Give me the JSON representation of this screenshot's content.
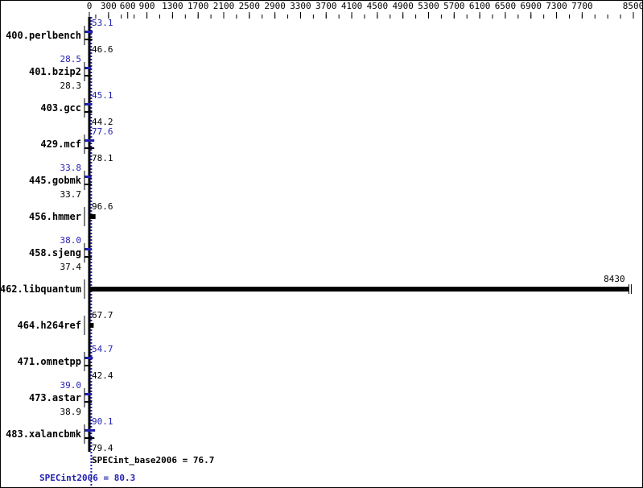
{
  "chart_data": {
    "type": "bar",
    "orientation": "horizontal",
    "xlim": [
      0,
      8500
    ],
    "x_ticks": [
      0,
      300,
      600,
      900,
      1300,
      1700,
      2100,
      2500,
      2900,
      3300,
      3700,
      4100,
      4500,
      4900,
      5300,
      5700,
      6100,
      6500,
      6900,
      7300,
      7700,
      8500
    ],
    "categories": [
      "400.perlbench",
      "401.bzip2",
      "403.gcc",
      "429.mcf",
      "445.gobmk",
      "456.hmmer",
      "458.sjeng",
      "462.libquantum",
      "464.h264ref",
      "471.omnetpp",
      "473.astar",
      "483.xalancbmk"
    ],
    "series": [
      {
        "name": "SPECint2006",
        "color": "#1f1fb0",
        "values": [
          53.1,
          28.5,
          45.1,
          77.6,
          33.8,
          null,
          38.0,
          null,
          null,
          54.7,
          39.0,
          90.1
        ]
      },
      {
        "name": "SPECint_base2006",
        "color": "#000000",
        "values": [
          46.6,
          28.3,
          44.2,
          78.1,
          33.7,
          96.6,
          37.4,
          8430,
          67.7,
          42.4,
          38.9,
          79.4
        ]
      }
    ],
    "summary": {
      "base_label": "SPECint_base2006 = 76.7",
      "peak_label": "SPECint2006 = 80.3",
      "base_value": 76.7,
      "peak_value": 80.3
    }
  }
}
